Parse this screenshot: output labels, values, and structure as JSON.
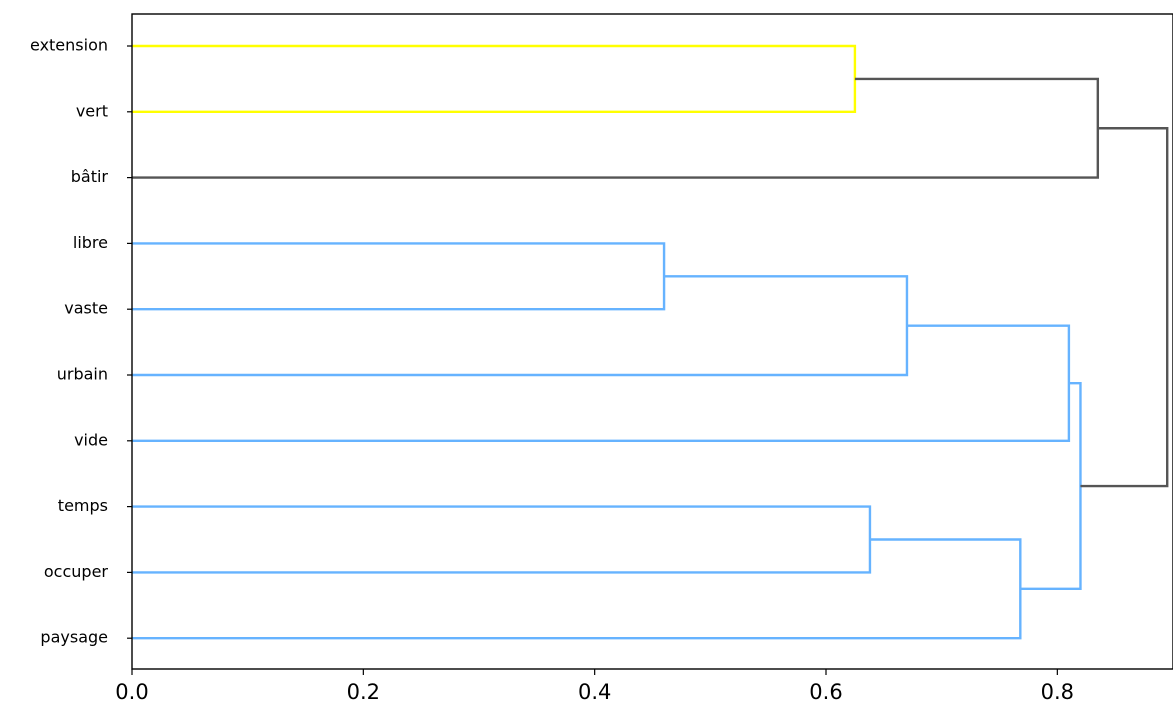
{
  "chart_data": {
    "type": "dendrogram",
    "orientation": "horizontal",
    "leaves": [
      "extension",
      "vert",
      "bâtir",
      "libre",
      "vaste",
      "urbain",
      "vide",
      "temps",
      "occuper",
      "paysage"
    ],
    "xlim": [
      0,
      0.9
    ],
    "x_ticks": [
      0.0,
      0.2,
      0.4,
      0.6,
      0.8
    ],
    "x_tick_labels": [
      "0.0",
      "0.2",
      "0.4",
      "0.6",
      "0.8"
    ],
    "colors": {
      "cluster1": "#ffff00",
      "cluster2": "#66b3ff",
      "above_threshold": "#555555"
    },
    "merges": [
      {
        "id": "m1",
        "children": [
          "extension",
          "vert"
        ],
        "height": 0.625,
        "color": "cluster1"
      },
      {
        "id": "m2",
        "children": [
          "m1",
          "bâtir"
        ],
        "height": 0.835,
        "color": "above_threshold"
      },
      {
        "id": "m3",
        "children": [
          "libre",
          "vaste"
        ],
        "height": 0.46,
        "color": "cluster2"
      },
      {
        "id": "m4",
        "children": [
          "m3",
          "urbain"
        ],
        "height": 0.67,
        "color": "cluster2"
      },
      {
        "id": "m5",
        "children": [
          "m4",
          "vide"
        ],
        "height": 0.81,
        "color": "cluster2"
      },
      {
        "id": "m6",
        "children": [
          "temps",
          "occuper"
        ],
        "height": 0.638,
        "color": "cluster2"
      },
      {
        "id": "m7",
        "children": [
          "m6",
          "paysage"
        ],
        "height": 0.768,
        "color": "cluster2"
      },
      {
        "id": "m8",
        "children": [
          "m5",
          "m7"
        ],
        "height": 0.82,
        "color": "cluster2"
      },
      {
        "id": "m9",
        "children": [
          "m2",
          "m8"
        ],
        "height": 0.895,
        "color": "above_threshold"
      }
    ]
  }
}
